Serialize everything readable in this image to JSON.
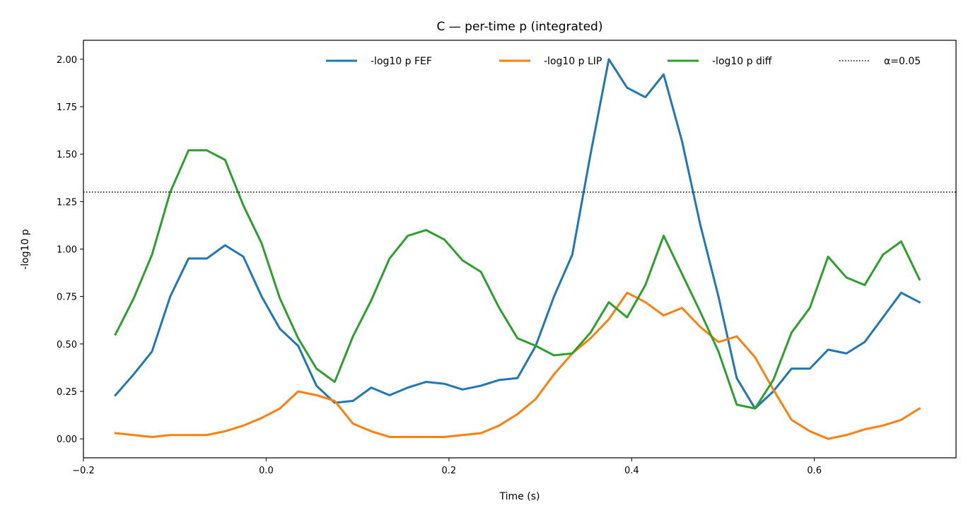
{
  "chart_data": {
    "type": "line",
    "title": "C — per-time p (integrated)",
    "xlabel": "Time (s)",
    "ylabel": "-log10 p",
    "xlim": [
      -0.2,
      0.755
    ],
    "ylim": [
      -0.1,
      2.1
    ],
    "xticks": [
      -0.2,
      0.0,
      0.2,
      0.4,
      0.6
    ],
    "xtick_labels": [
      "−0.2",
      "0.0",
      "0.2",
      "0.4",
      "0.6"
    ],
    "yticks": [
      0.0,
      0.25,
      0.5,
      0.75,
      1.0,
      1.25,
      1.5,
      1.75,
      2.0
    ],
    "ytick_labels": [
      "0.00",
      "0.25",
      "0.50",
      "0.75",
      "1.00",
      "1.25",
      "1.50",
      "1.75",
      "2.00"
    ],
    "grid": false,
    "legend_position": "top-right",
    "x": [
      -0.165,
      -0.145,
      -0.125,
      -0.105,
      -0.085,
      -0.065,
      -0.045,
      -0.025,
      -0.005,
      0.015,
      0.035,
      0.055,
      0.075,
      0.095,
      0.115,
      0.135,
      0.155,
      0.175,
      0.195,
      0.215,
      0.235,
      0.255,
      0.275,
      0.295,
      0.315,
      0.335,
      0.355,
      0.375,
      0.395,
      0.415,
      0.435,
      0.455,
      0.475,
      0.495,
      0.515,
      0.535,
      0.555,
      0.575,
      0.595,
      0.615,
      0.635,
      0.655,
      0.675,
      0.695,
      0.715
    ],
    "series": [
      {
        "name": "-log10 p FEF",
        "color": "#1f77b4",
        "style": "solid",
        "values": [
          0.23,
          0.34,
          0.46,
          0.75,
          0.95,
          0.95,
          1.02,
          0.96,
          0.75,
          0.58,
          0.49,
          0.28,
          0.19,
          0.2,
          0.27,
          0.23,
          0.27,
          0.3,
          0.29,
          0.26,
          0.28,
          0.31,
          0.32,
          0.49,
          0.75,
          0.97,
          1.5,
          2.0,
          1.85,
          1.8,
          1.92,
          1.57,
          1.13,
          0.75,
          0.32,
          0.16,
          0.25,
          0.37,
          0.37,
          0.47,
          0.45,
          0.51,
          0.64,
          0.77,
          0.72
        ]
      },
      {
        "name": "-log10 p LIP",
        "color": "#ff7f0e",
        "style": "solid",
        "values": [
          0.03,
          0.02,
          0.01,
          0.02,
          0.02,
          0.02,
          0.04,
          0.07,
          0.11,
          0.16,
          0.25,
          0.23,
          0.2,
          0.08,
          0.04,
          0.01,
          0.01,
          0.01,
          0.01,
          0.02,
          0.03,
          0.07,
          0.13,
          0.21,
          0.34,
          0.45,
          0.53,
          0.63,
          0.77,
          0.72,
          0.65,
          0.69,
          0.59,
          0.51,
          0.54,
          0.43,
          0.26,
          0.1,
          0.04,
          0.0,
          0.02,
          0.05,
          0.07,
          0.1,
          0.16
        ]
      },
      {
        "name": "-log10 p diff",
        "color": "#2ca02c",
        "style": "solid",
        "values": [
          0.55,
          0.74,
          0.97,
          1.3,
          1.52,
          1.52,
          1.47,
          1.23,
          1.03,
          0.74,
          0.53,
          0.37,
          0.3,
          0.54,
          0.73,
          0.95,
          1.07,
          1.1,
          1.05,
          0.94,
          0.88,
          0.69,
          0.53,
          0.49,
          0.44,
          0.45,
          0.56,
          0.72,
          0.64,
          0.81,
          1.07,
          0.87,
          0.67,
          0.46,
          0.18,
          0.16,
          0.31,
          0.56,
          0.69,
          0.96,
          0.85,
          0.81,
          0.97,
          1.04,
          0.84
        ]
      }
    ],
    "reference_line": {
      "name": "α=0.05",
      "y": 1.3,
      "color": "#000000",
      "style": "dotted"
    }
  }
}
